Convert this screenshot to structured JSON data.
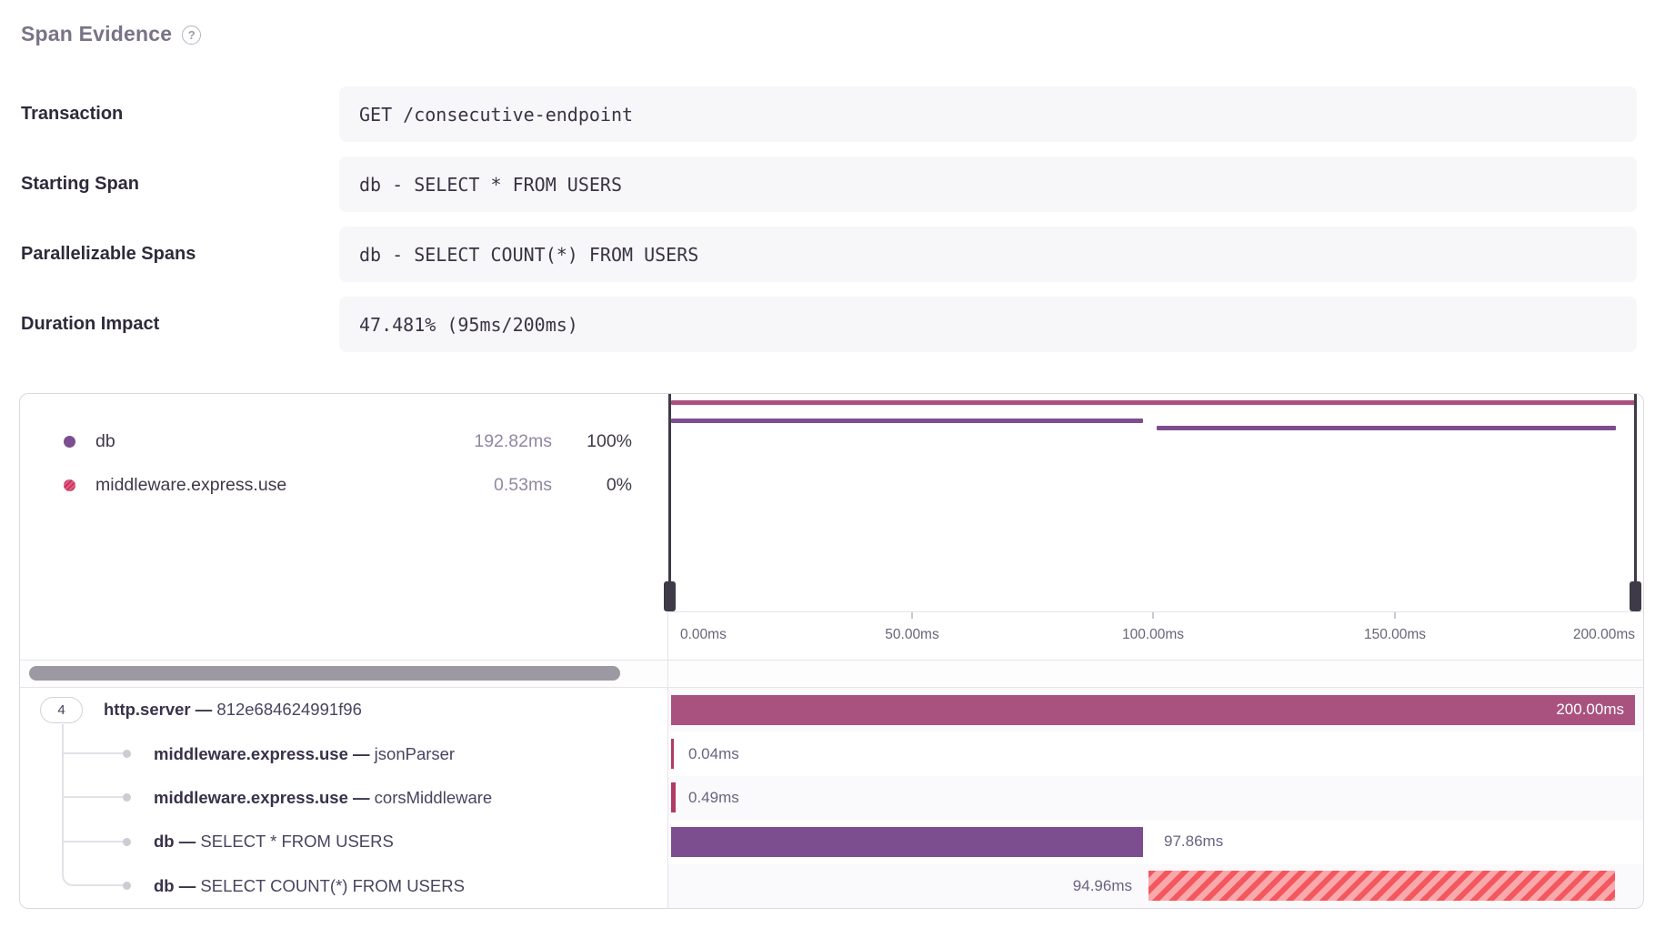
{
  "header": {
    "title": "Span Evidence",
    "help_icon": "?"
  },
  "fields": [
    {
      "label": "Transaction",
      "value": "GET /consecutive-endpoint"
    },
    {
      "label": "Starting Span",
      "value": "db - SELECT * FROM USERS"
    },
    {
      "label": "Parallelizable Spans",
      "value": "db - SELECT COUNT(*) FROM USERS"
    },
    {
      "label": "Duration Impact",
      "value": "47.481% (95ms/200ms)"
    }
  ],
  "legend": {
    "items": [
      {
        "name": "db",
        "duration": "192.82ms",
        "percent": "100%",
        "color": "#7d4e8f"
      },
      {
        "name": "middleware.express.use",
        "duration": "0.53ms",
        "percent": "0%",
        "color": "#c9325f"
      }
    ]
  },
  "axis": {
    "ticks": [
      "0.00ms",
      "50.00ms",
      "100.00ms",
      "150.00ms",
      "200.00ms"
    ],
    "range_ms": [
      0,
      200
    ]
  },
  "tree": {
    "badge": "4",
    "separator": "—",
    "rows": [
      {
        "op": "http.server",
        "desc": "812e684624991f96",
        "duration": "200.00ms",
        "bar_color": "#a9527f"
      },
      {
        "op": "middleware.express.use",
        "desc": "jsonParser",
        "duration": "0.04ms",
        "bar_color": "#b03a63"
      },
      {
        "op": "middleware.express.use",
        "desc": "corsMiddleware",
        "duration": "0.49ms",
        "bar_color": "#b03a63"
      },
      {
        "op": "db",
        "desc": "SELECT * FROM USERS",
        "duration": "97.86ms",
        "bar_color": "#7d4e8f"
      },
      {
        "op": "db",
        "desc": "SELECT COUNT(*) FROM USERS",
        "duration": "94.96ms",
        "bar_color": "hatched #f4575e/#f9a9ac"
      }
    ]
  },
  "colors": {
    "http_server_bar": "#a9527f",
    "db_bar": "#7d4e8f",
    "middleware_bar": "#b03a63",
    "hatch_stripe": "#f4575e",
    "hatch_bg": "#f9a9ac",
    "panel_border": "#dcd9e2",
    "divider": "#e6e3ea",
    "zebra_row": "#faf9fb",
    "value_box_bg": "#f7f6f9",
    "muted_text": "#9187a3",
    "dark_text": "#2f2a3b",
    "title_text": "#7a7387",
    "handle": "#3e3a47",
    "scrollbar": "#9d99a2"
  }
}
